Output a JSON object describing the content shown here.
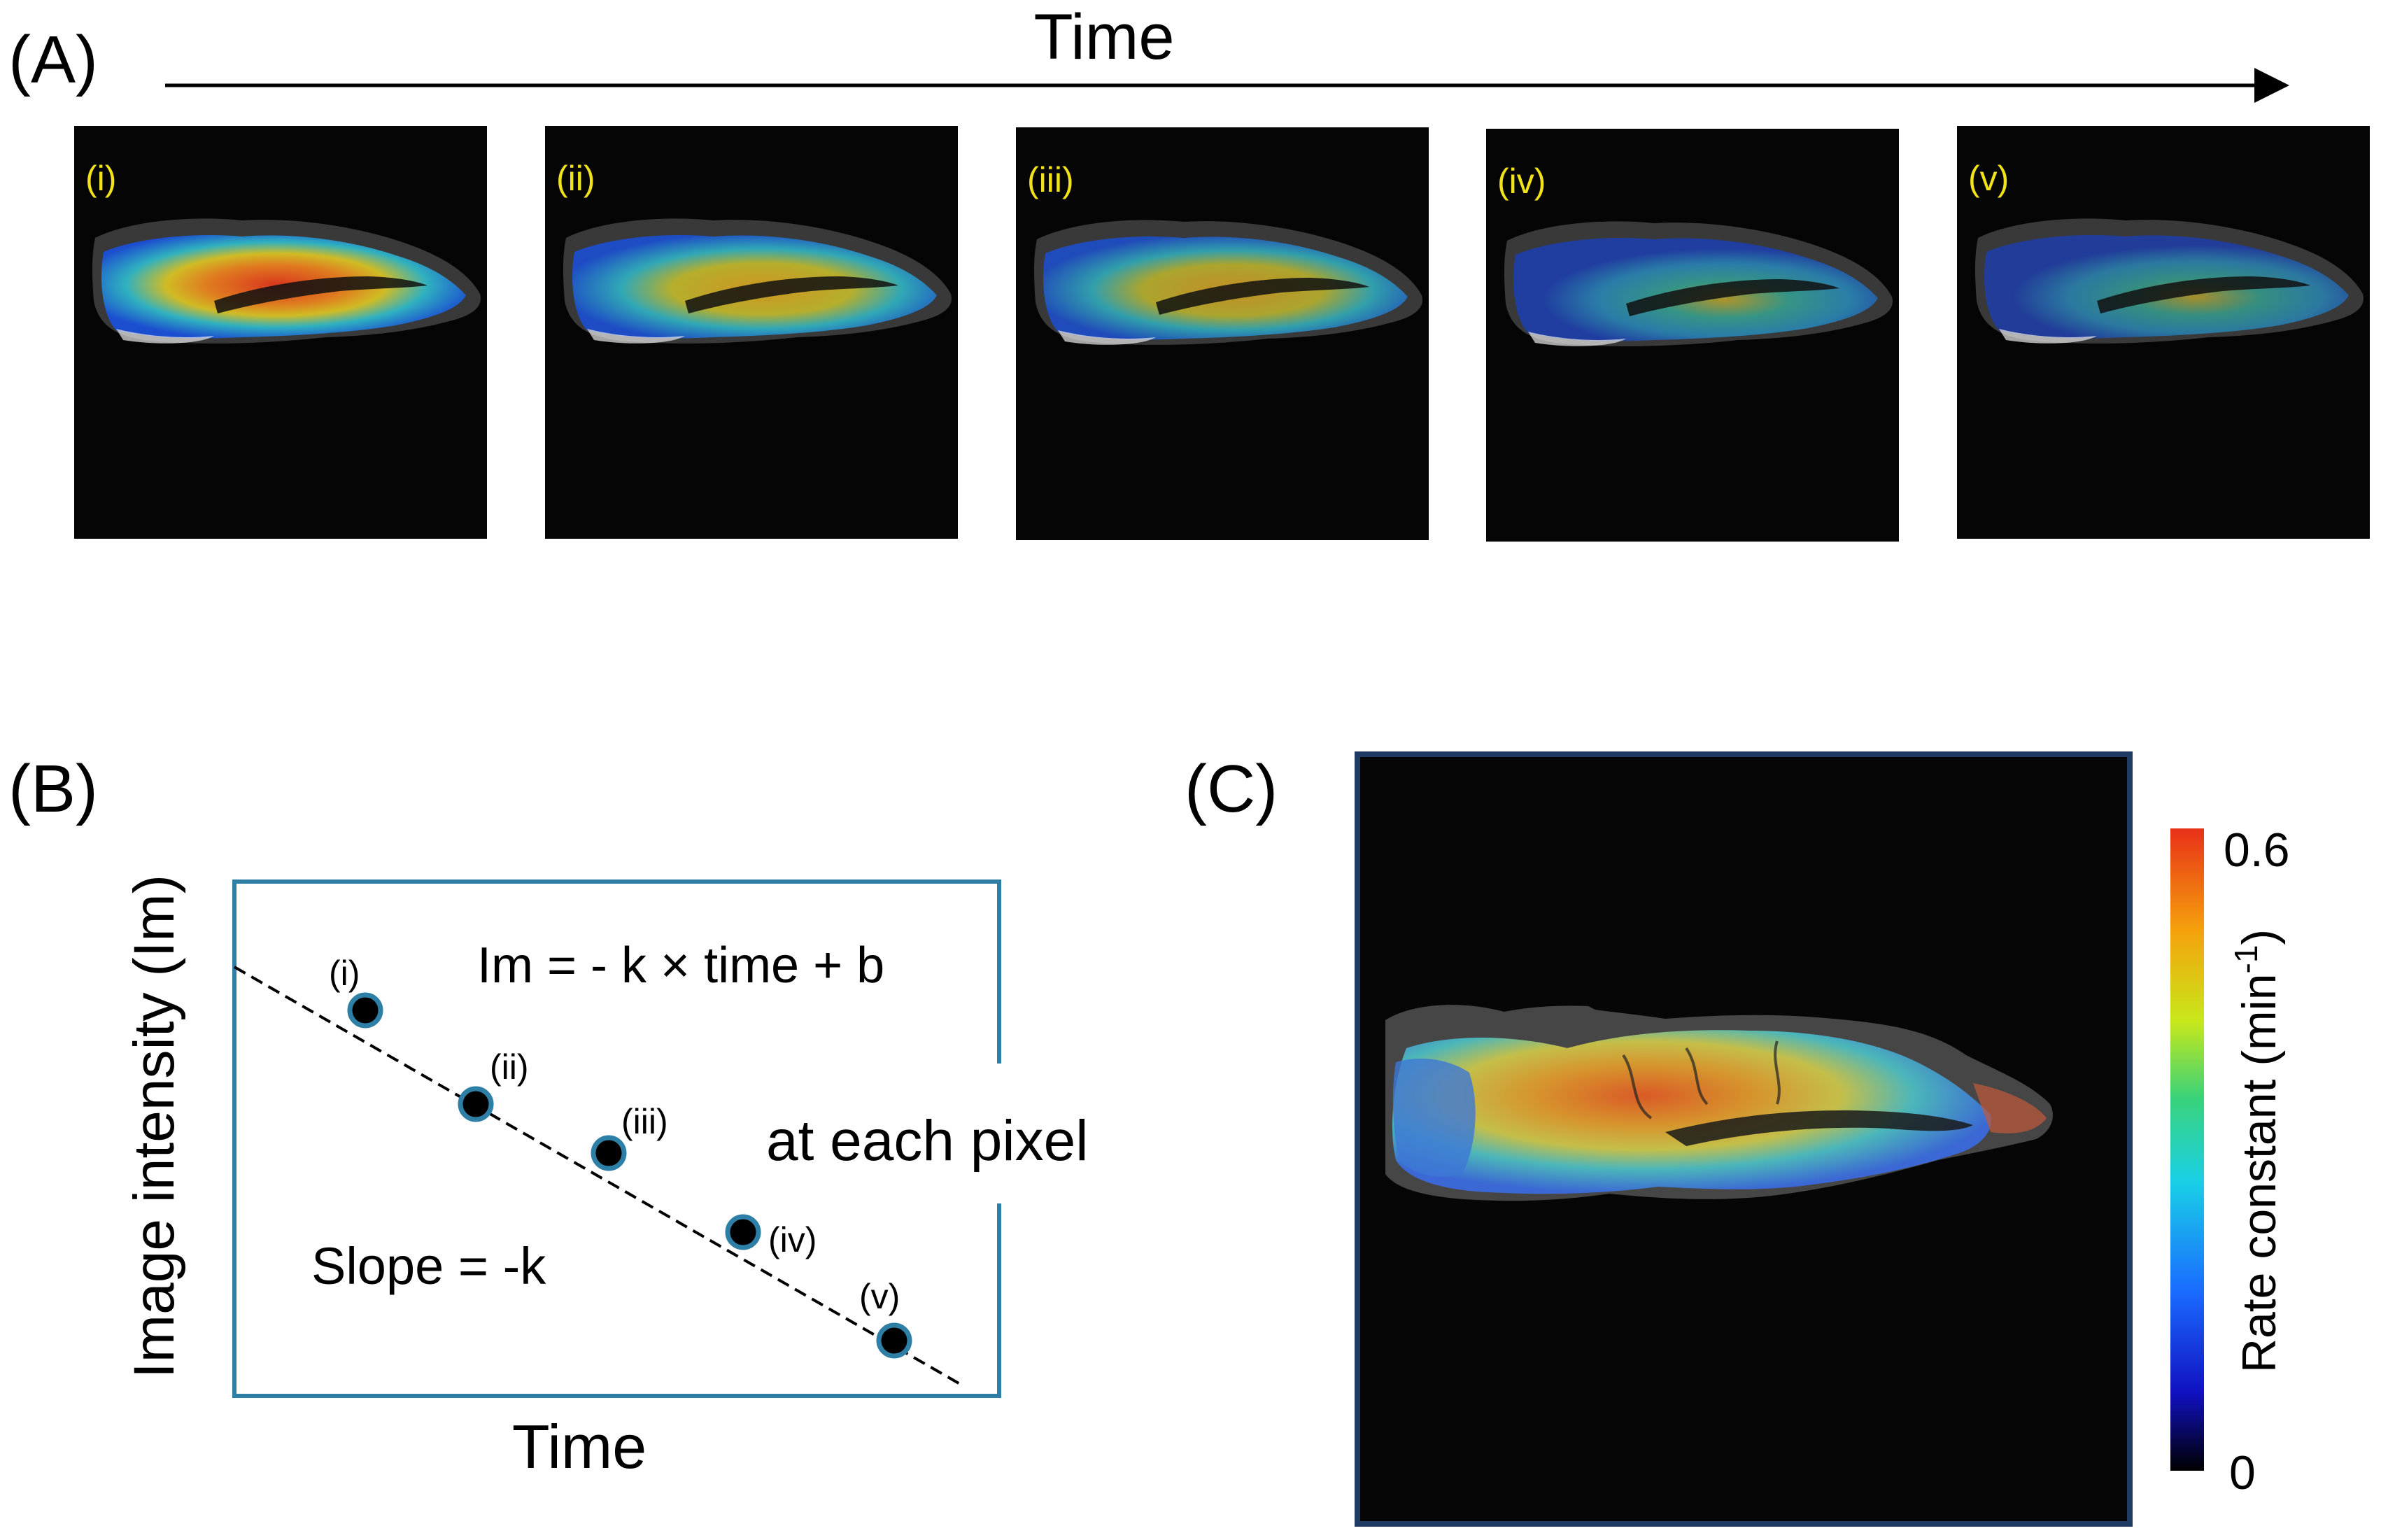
{
  "panel_a": {
    "letter": "(A)",
    "axis_label": "Time",
    "frames": [
      {
        "label": "(i)",
        "intensity": 1.0
      },
      {
        "label": "(ii)",
        "intensity": 0.82
      },
      {
        "label": "(iii)",
        "intensity": 0.66
      },
      {
        "label": "(iv)",
        "intensity": 0.48
      },
      {
        "label": "(v)",
        "intensity": 0.34
      }
    ]
  },
  "panel_b": {
    "letter": "(B)",
    "xlabel": "Time",
    "ylabel": "Image intensity (Im)",
    "equation": "Im = - k × time + b",
    "slope_label": "Slope = -k",
    "pixel_note": "at each pixel",
    "point_labels": [
      "(i)",
      "(ii)",
      "(iii)",
      "(iv)",
      "(v)"
    ],
    "colors": {
      "frame": "#2e7fa6",
      "point_ring": "#2e7fa6",
      "point_fill": "#000000"
    }
  },
  "panel_c": {
    "letter": "(C)",
    "colorbar": {
      "label": "Rate constant (min",
      "label_sup": "-1",
      "label_close": ")",
      "max_label": "0.6",
      "min_label": "0",
      "colors": [
        "#000000",
        "#1010c0",
        "#1a6cff",
        "#19d0e6",
        "#39d27a",
        "#c8e81a",
        "#f5a20c",
        "#e83018"
      ]
    },
    "frame_color": "#1f3b63"
  },
  "label_color": "#f2e21a"
}
